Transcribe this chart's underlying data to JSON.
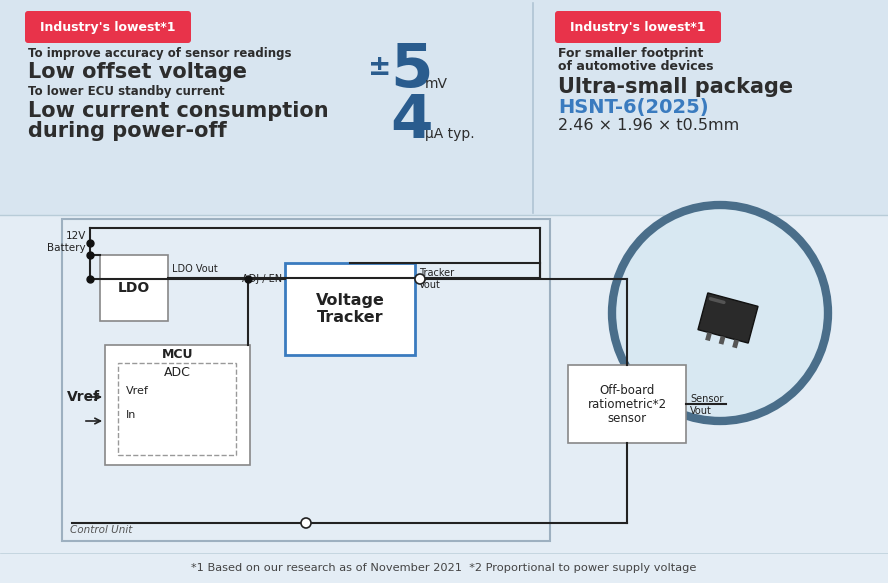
{
  "fig_w": 8.88,
  "fig_h": 5.83,
  "dpi": 100,
  "bg_color": "#e4edf5",
  "top_panel_color": "#d8e5f0",
  "footer_bg": "#e4edf5",
  "badge_color": "#e8334a",
  "badge_text": "Industry's lowest*1",
  "badge_text_color": "#ffffff",
  "left_sub1": "To improve accuracy of sensor readings",
  "left_main1": "Low offset voltage",
  "left_value1_pm": "±",
  "left_value1_num": "5",
  "left_unit1": "mV",
  "left_sub2": "To lower ECU standby current",
  "left_main2a": "Low current consumption",
  "left_main2b": "during power-off",
  "left_value2": "4",
  "left_unit2": "μA typ.",
  "right_sub1a": "For smaller footprint",
  "right_sub1b": "of automotive devices",
  "right_main1": "Ultra-small package",
  "right_model": "HSNT-6(2025)",
  "right_model_color": "#3a7bbf",
  "right_dims": "2.46 × 1.96 × t0.5mm",
  "value_color": "#2a5c8e",
  "dark_text_color": "#2d2d2d",
  "sub_text_color": "#2d2d2d",
  "footer_text": "*1 Based on our research as of November 2021  *2 Proportional to power supply voltage",
  "circuit_border_color": "#9db0c0",
  "voltage_tracker_border": "#3a7bbf",
  "circle_outline": "#4a6e8a",
  "circle_fill": "#d8e8f2",
  "wire_color": "#222222",
  "dot_color": "#111111",
  "box_fill": "#ffffff",
  "ldo_border": "#888888",
  "mcu_border": "#888888",
  "sensor_border": "#888888"
}
